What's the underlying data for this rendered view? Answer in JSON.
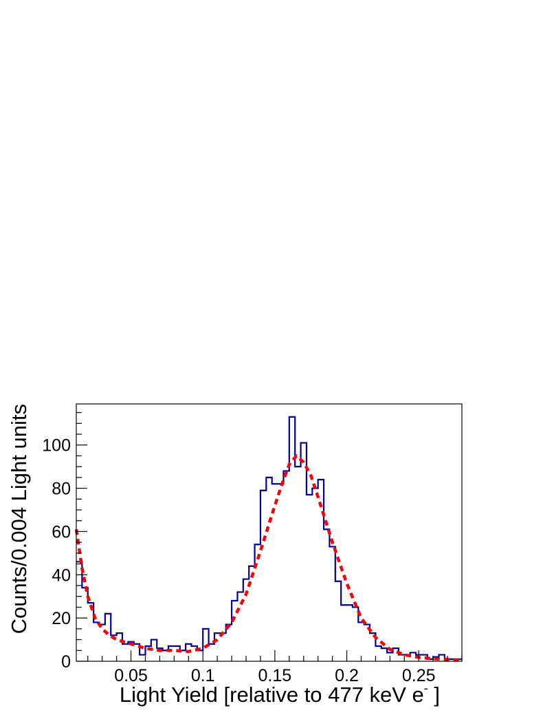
{
  "chart_data": {
    "type": "histogram",
    "xlabel": "Light Yield [relative to 477 keV e",
    "xlabel_superscript": "-",
    "xlabel_suffix": " ]",
    "ylabel": "Counts/0.004 Light units",
    "xlim": [
      0.012,
      0.28
    ],
    "ylim": [
      0,
      119
    ],
    "bin_width": 0.004,
    "x_ticks": [
      0.05,
      0.1,
      0.15,
      0.2,
      0.25
    ],
    "x_tick_labels": [
      "0.05",
      "0.1",
      "0.15",
      "0.2",
      "0.25"
    ],
    "y_ticks": [
      0,
      20,
      40,
      60,
      80,
      100
    ],
    "y_tick_labels": [
      "0",
      "20",
      "40",
      "60",
      "80",
      "100"
    ],
    "grid": false,
    "series": [
      {
        "kind": "histogram",
        "color": "#000099",
        "bin_edges_start": 0.012,
        "counts": [
          46,
          34,
          27,
          18,
          17,
          22,
          12,
          13,
          8,
          9,
          8,
          3,
          7,
          10,
          6,
          5,
          7,
          7,
          5,
          8,
          7,
          5,
          15,
          8,
          13,
          13,
          17,
          28,
          32,
          38,
          44,
          54,
          79,
          85,
          82,
          82,
          88,
          113,
          90,
          101,
          77,
          80,
          84,
          61,
          53,
          37,
          26,
          26,
          25,
          18,
          17,
          13,
          7,
          6,
          4,
          6,
          3,
          3,
          4,
          3,
          3,
          1,
          2,
          3,
          1,
          1,
          1
        ]
      },
      {
        "kind": "fit",
        "color": "#ff0000",
        "style": "dashed",
        "x": [
          0.012,
          0.016,
          0.02,
          0.025,
          0.03,
          0.035,
          0.04,
          0.05,
          0.06,
          0.07,
          0.08,
          0.09,
          0.1,
          0.11,
          0.12,
          0.13,
          0.14,
          0.15,
          0.155,
          0.16,
          0.165,
          0.17,
          0.175,
          0.18,
          0.19,
          0.2,
          0.21,
          0.22,
          0.23,
          0.24,
          0.25,
          0.26,
          0.27,
          0.28
        ],
        "y": [
          61,
          43,
          30,
          20,
          15,
          12,
          10,
          8,
          6,
          5,
          5,
          4.5,
          6,
          10,
          18,
          31,
          51,
          72,
          82,
          91,
          95,
          92,
          86,
          76,
          55,
          36,
          20,
          11,
          5.5,
          3,
          1.8,
          1.2,
          0.8,
          0.5
        ]
      }
    ]
  }
}
